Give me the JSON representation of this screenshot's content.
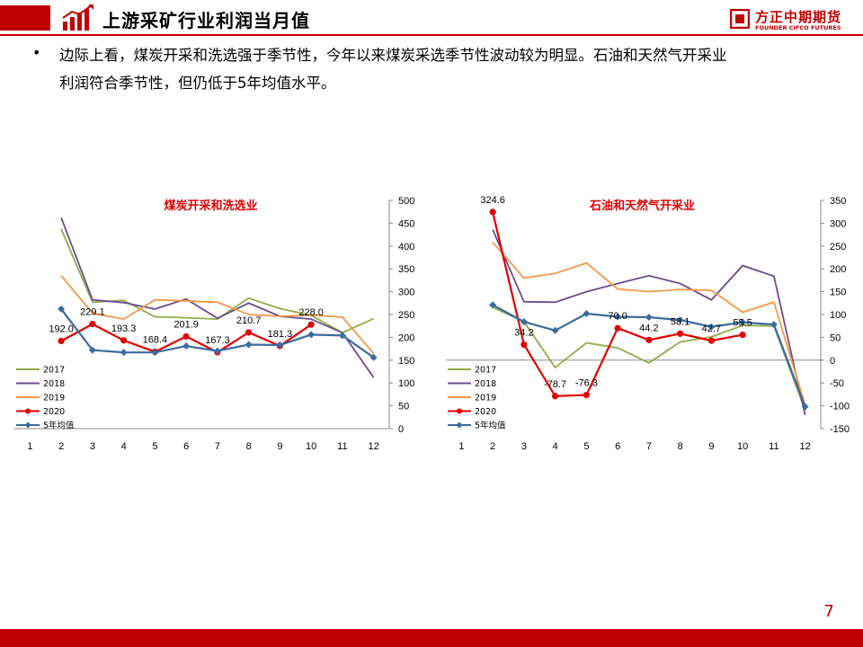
{
  "header": {
    "title": "上游采矿行业利润当月值",
    "logo_text": "方正中期期货",
    "logo_subtext": "FOUNDER CIFCO FUTURES"
  },
  "colors": {
    "brand": "#c00000",
    "s2017": "#8fac4a",
    "s2018": "#6c4c8d",
    "s2019": "#f79646",
    "s2020": "#e00000",
    "avg5": "#3b6b9e"
  },
  "bullet": {
    "symbol": "•",
    "line1": "边际上看，煤炭开采和洗选强于季节性，今年以来煤炭采选季节性波动较为明显。石油和天然气开采业",
    "line2": "利润符合季节性，但仍低于5年均值水平。"
  },
  "page_number": "7",
  "chart_data": [
    {
      "type": "line",
      "title": "煤炭开采和洗选业",
      "categories": [
        "1",
        "2",
        "3",
        "4",
        "5",
        "6",
        "7",
        "8",
        "9",
        "10",
        "11",
        "12"
      ],
      "ylim": [
        0,
        500
      ],
      "yticks": [
        "0",
        "50",
        "100",
        "150",
        "200",
        "250",
        "300",
        "350",
        "400",
        "450",
        "500"
      ],
      "yaxis_position": "right",
      "legend_position": "bottom-left",
      "series": [
        {
          "name": "2017",
          "values": [
            null,
            437,
            277,
            281,
            245,
            243,
            240,
            286,
            263,
            248,
            210,
            241
          ]
        },
        {
          "name": "2018",
          "values": [
            null,
            462,
            282,
            276,
            262,
            284,
            242,
            275,
            246,
            240,
            210,
            112
          ]
        },
        {
          "name": "2019",
          "values": [
            null,
            335,
            253,
            240,
            282,
            280,
            277,
            250,
            246,
            249,
            244,
            165
          ]
        },
        {
          "name": "2020",
          "values": [
            null,
            192.0,
            229.1,
            193.3,
            168.4,
            201.9,
            167.3,
            210.7,
            181.3,
            228.0,
            null,
            null
          ],
          "labels": [
            "",
            "192.0",
            "229.1",
            "193.3",
            "168.4",
            "201.9",
            "167.3",
            "210.7",
            "181.3",
            "228.0",
            "",
            ""
          ]
        },
        {
          "name": "5年均值",
          "values": [
            null,
            262,
            172,
            167,
            167,
            181,
            170,
            184,
            183,
            206,
            204,
            156
          ]
        }
      ]
    },
    {
      "type": "line",
      "title": "石油和天然气开采业",
      "categories": [
        "1",
        "2",
        "3",
        "4",
        "5",
        "6",
        "7",
        "8",
        "9",
        "10",
        "11",
        "12"
      ],
      "ylim": [
        -150,
        350
      ],
      "yticks": [
        "-150",
        "-100",
        "-50",
        "0",
        "50",
        "100",
        "150",
        "200",
        "250",
        "300",
        "350"
      ],
      "yaxis_position": "right",
      "legend_position": "bottom-left",
      "series": [
        {
          "name": "2017",
          "values": [
            null,
            116,
            84,
            -16,
            38,
            27,
            -6,
            40,
            51,
            76,
            75,
            -110
          ]
        },
        {
          "name": "2018",
          "values": [
            null,
            286,
            128,
            127,
            150,
            168,
            185,
            168,
            132,
            207,
            184,
            -120
          ]
        },
        {
          "name": "2019",
          "values": [
            null,
            258,
            180,
            190,
            213,
            156,
            150,
            155,
            153,
            105,
            127,
            -98
          ]
        },
        {
          "name": "2020",
          "values": [
            null,
            324.6,
            34.2,
            -78.7,
            -76.3,
            70.0,
            44.2,
            58.1,
            42.7,
            55.5,
            null,
            null
          ],
          "labels": [
            "",
            "324.6",
            "34.2",
            "-78.7",
            "-76.3",
            "70.0",
            "44.2",
            "58.1",
            "42.7",
            "55.5",
            "",
            ""
          ]
        },
        {
          "name": "5年均值",
          "values": [
            null,
            121,
            84,
            65,
            102,
            95,
            94,
            88,
            73,
            83,
            78,
            -102
          ]
        }
      ]
    }
  ]
}
